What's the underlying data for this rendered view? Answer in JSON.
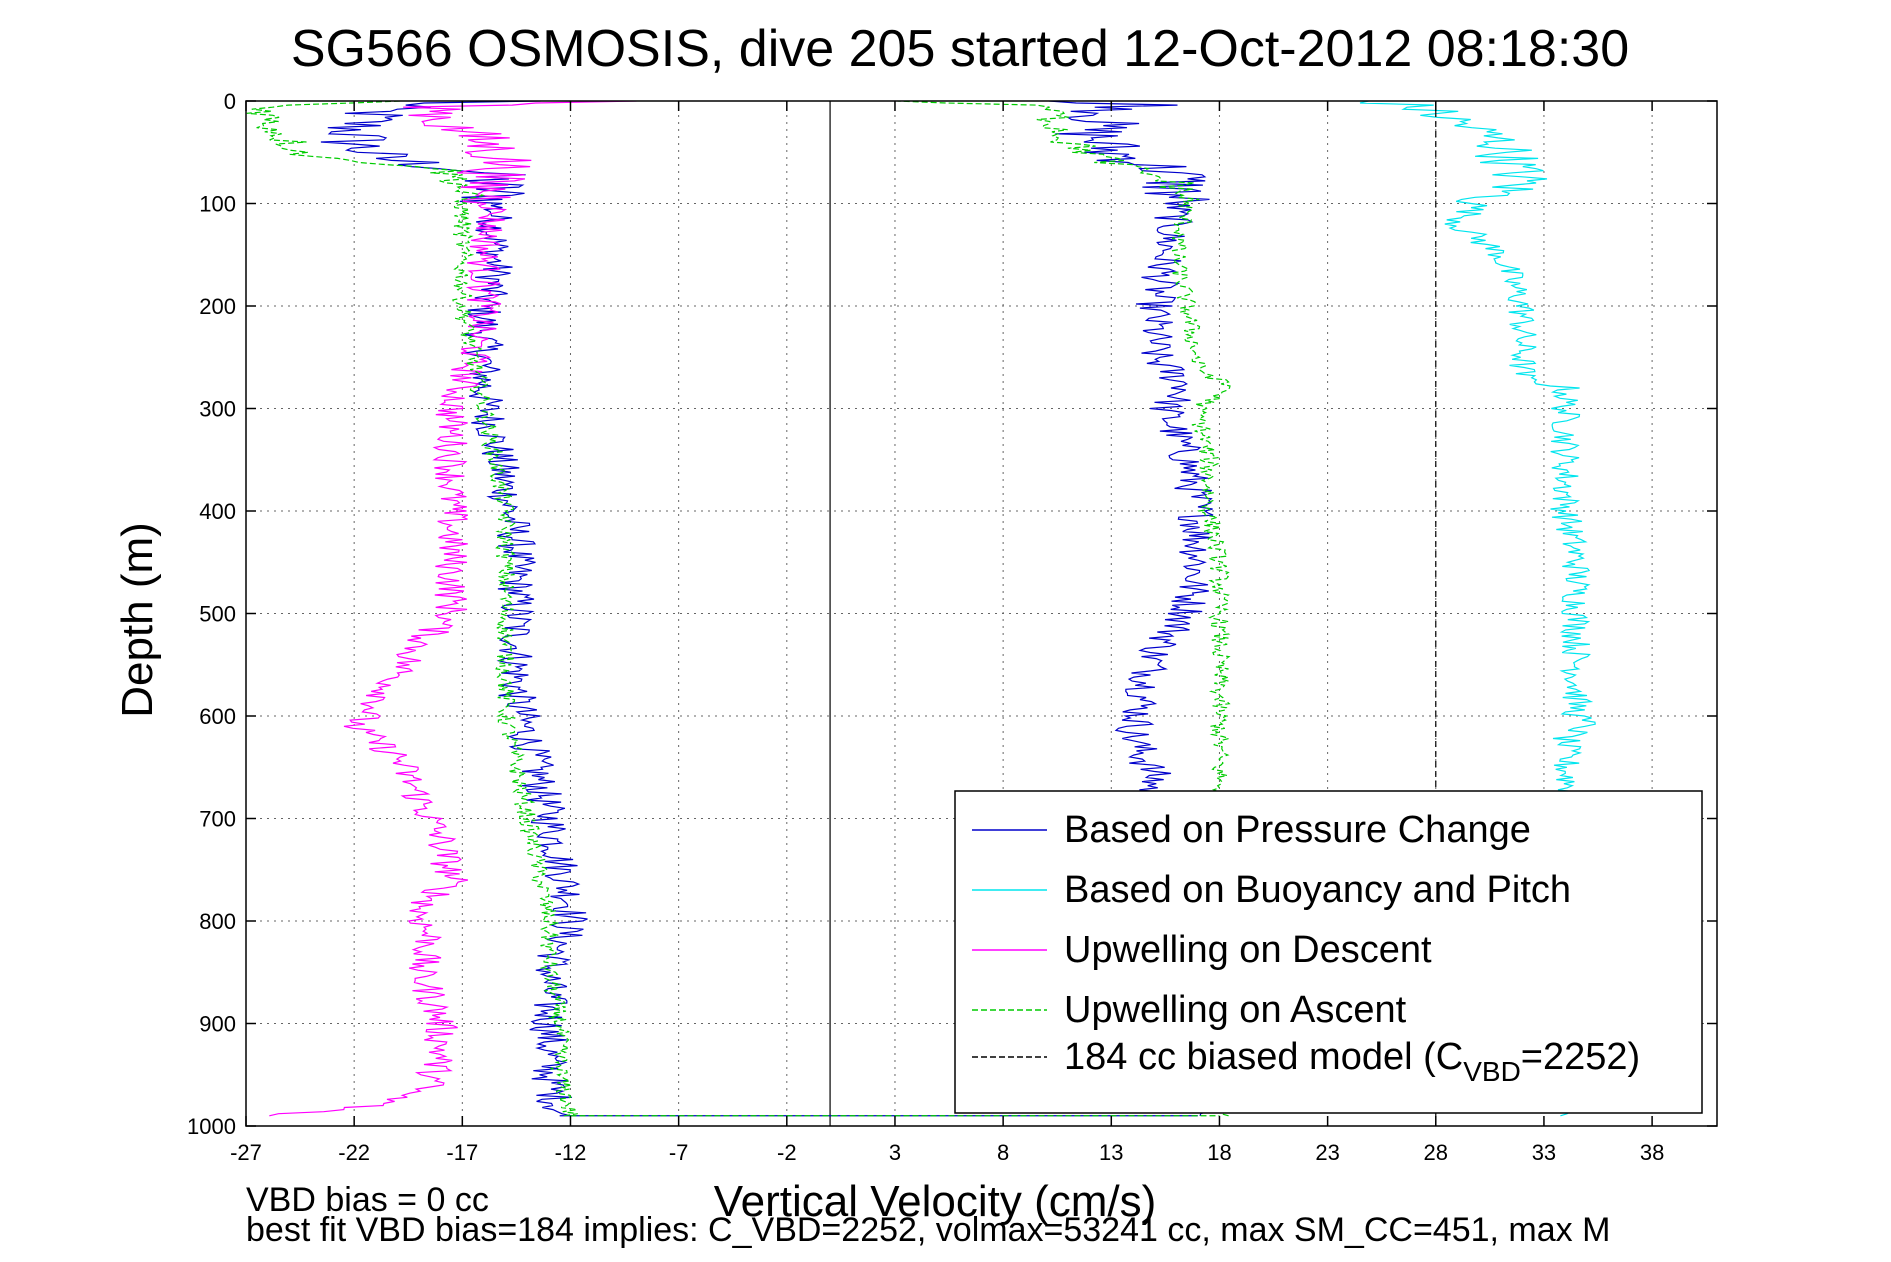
{
  "chart_data": {
    "type": "line",
    "title": "SG566 OSMOSIS, dive 205 started 12-Oct-2012 08:18:30",
    "xlabel": "Vertical Velocity (cm/s)",
    "ylabel": "Depth (m)",
    "xlim": [
      -27,
      41
    ],
    "ylim": [
      1000,
      0
    ],
    "y_reversed": true,
    "grid": true,
    "x_ticks": [
      -27,
      -22,
      -17,
      -12,
      -7,
      -2,
      3,
      8,
      13,
      18,
      23,
      28,
      33,
      38
    ],
    "x_tick_labels": [
      "-27",
      "-22",
      "-17",
      "-12",
      "-7",
      "-2",
      "3",
      "8",
      "13",
      "18",
      "23",
      "28",
      "33",
      "38"
    ],
    "y_ticks": [
      0,
      100,
      200,
      300,
      400,
      500,
      600,
      700,
      800,
      900,
      1000
    ],
    "y_tick_labels": [
      "0",
      "100",
      "200",
      "300",
      "400",
      "500",
      "600",
      "700",
      "800",
      "900",
      "1000"
    ],
    "legend_position": "bottom-right",
    "zero_line_x": 0,
    "series": [
      {
        "name": "Based on Pressure Change",
        "color": "#0000cc",
        "style": "solid",
        "noise": 0.9,
        "descent": {
          "depth": [
            0,
            3,
            10,
            25,
            40,
            55,
            70,
            90,
            110,
            140,
            170,
            200,
            230,
            260,
            290,
            330,
            380,
            430,
            480,
            530,
            580,
            620,
            660,
            700,
            740,
            780,
            800,
            850,
            900,
            950,
            990
          ],
          "v": [
            -14,
            -20,
            -21,
            -22,
            -22,
            -21,
            -16,
            -15.5,
            -15.5,
            -15.5,
            -15.5,
            -16,
            -16,
            -16,
            -16,
            -15.5,
            -15,
            -14.5,
            -14.5,
            -14.5,
            -14.5,
            -14,
            -13.5,
            -13,
            -12.5,
            -12,
            -12,
            -13,
            -13,
            -13,
            -12.5
          ]
        },
        "ascent": {
          "depth": [
            990,
            950,
            900,
            850,
            800,
            750,
            700,
            660,
            620,
            580,
            540,
            500,
            450,
            400,
            350,
            300,
            280,
            250,
            200,
            150,
            100,
            70,
            50,
            30,
            10,
            3,
            0
          ],
          "v": [
            17,
            16.5,
            16,
            15.5,
            15,
            14.5,
            14.5,
            15,
            14,
            14.5,
            15,
            16.5,
            17,
            17,
            16.5,
            15.5,
            16.5,
            15,
            15,
            15.5,
            16,
            16,
            13,
            12,
            13,
            15,
            10
          ]
        }
      },
      {
        "name": "Based on Buoyancy and Pitch",
        "color": "#00e5ee",
        "style": "solid",
        "noise": 0.7,
        "descent": {
          "depth": [
            0,
            5,
            20,
            40,
            60,
            80,
            100,
            120,
            150,
            200,
            250,
            270,
            280,
            300,
            350,
            400,
            450,
            500,
            550,
            600,
            610,
            620,
            650,
            700,
            750,
            800,
            850,
            900,
            950,
            990
          ],
          "v": [
            25,
            27,
            29,
            31,
            31.5,
            32,
            30,
            29,
            31,
            32,
            32,
            32,
            34,
            34,
            34,
            34,
            34.5,
            34.5,
            34.5,
            34.5,
            35,
            34,
            34,
            34.5,
            34.5,
            34.5,
            34.5,
            34.5,
            34.5,
            34
          ]
        }
      },
      {
        "name": "Upwelling on Descent",
        "color": "#ff00ff",
        "style": "solid",
        "noise": 0.8,
        "descent": {
          "depth": [
            0,
            5,
            20,
            40,
            60,
            80,
            100,
            150,
            200,
            250,
            300,
            350,
            400,
            450,
            500,
            530,
            560,
            590,
            610,
            640,
            680,
            720,
            760,
            790,
            820,
            850,
            870,
            900,
            930,
            960,
            980,
            990
          ],
          "v": [
            -10,
            -18,
            -18,
            -16,
            -15,
            -16,
            -15.5,
            -16,
            -16,
            -16.5,
            -17.5,
            -17.5,
            -17.5,
            -17.5,
            -17.5,
            -19,
            -20,
            -21,
            -22,
            -20,
            -19,
            -18,
            -17.5,
            -19,
            -18.5,
            -19,
            -18.5,
            -18,
            -18,
            -18.5,
            -21,
            -26
          ]
        }
      },
      {
        "name": "Upwelling on Ascent",
        "color": "#00cc00",
        "style": "dashed",
        "noise": 0.45,
        "descent": {
          "depth": [
            0,
            5,
            20,
            40,
            55,
            65,
            80,
            100,
            150,
            200,
            250,
            300,
            350,
            400,
            450,
            500,
            550,
            600,
            650,
            700,
            750,
            800,
            850,
            900,
            950,
            990
          ],
          "v": [
            -20,
            -26,
            -26,
            -25,
            -24,
            -18,
            -17,
            -17,
            -17,
            -17,
            -16.5,
            -16,
            -15.5,
            -15,
            -15,
            -15,
            -15,
            -15,
            -14.5,
            -14,
            -13.5,
            -13,
            -13,
            -12.5,
            -12.5,
            -12
          ]
        },
        "ascent": {
          "depth": [
            990,
            950,
            900,
            850,
            800,
            750,
            700,
            660,
            620,
            600,
            560,
            500,
            450,
            400,
            350,
            300,
            280,
            260,
            200,
            150,
            100,
            80,
            60,
            40,
            20,
            5,
            0
          ],
          "v": [
            18,
            18,
            18,
            18,
            18,
            18,
            18,
            18,
            18,
            18,
            18,
            18,
            18,
            17.5,
            17.5,
            17,
            18.5,
            17,
            16.5,
            16,
            16.5,
            16,
            13,
            11,
            10.5,
            10,
            3
          ]
        }
      },
      {
        "name": "184 cc biased model (C",
        "name_subscript": "VBD",
        "name_suffix": "=2252)",
        "color": "#000000",
        "style": "dashed",
        "x_const": 28
      }
    ]
  },
  "footnote": {
    "line1": "VBD bias = 0 cc",
    "line2": "best fit VBD bias=184 implies: C_VBD=2252, volmax=53241 cc, max SM_CC=451, max M"
  }
}
